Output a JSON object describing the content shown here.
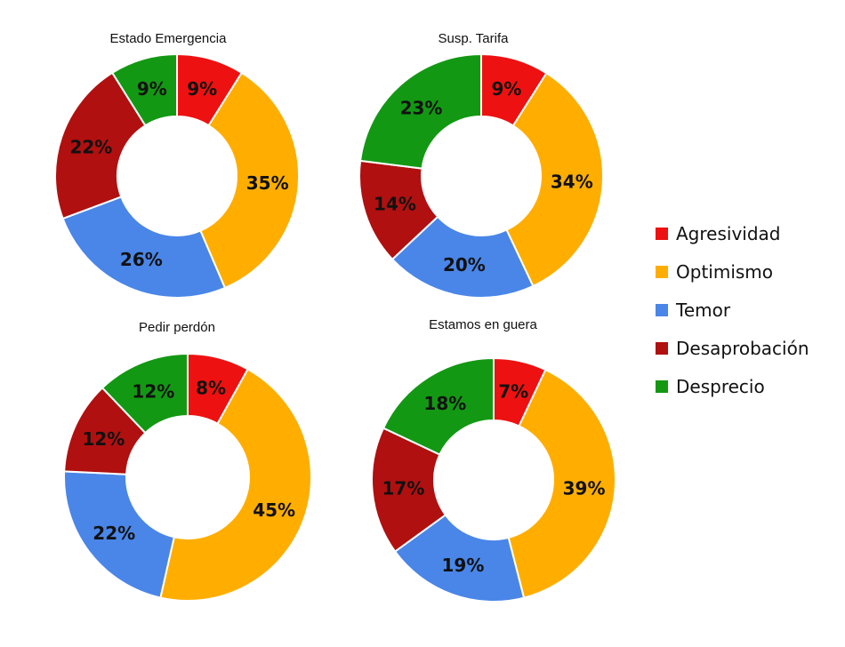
{
  "chart_data": [
    {
      "type": "pie",
      "title": "Estado Emergencia",
      "categories": [
        "Agresividad",
        "Optimismo",
        "Temor",
        "Desaprobación",
        "Desprecio"
      ],
      "values": [
        9,
        35,
        26,
        22,
        9
      ],
      "labels": [
        "9%",
        "35%",
        "26%",
        "22%",
        "9%"
      ]
    },
    {
      "type": "pie",
      "title": "Susp. Tarifa",
      "categories": [
        "Agresividad",
        "Optimismo",
        "Temor",
        "Desaprobación",
        "Desprecio"
      ],
      "values": [
        9,
        34,
        20,
        14,
        23
      ],
      "labels": [
        "9%",
        "34%",
        "20%",
        "14%",
        "23%"
      ]
    },
    {
      "type": "pie",
      "title": "Pedir perdón",
      "categories": [
        "Agresividad",
        "Optimismo",
        "Temor",
        "Desaprobación",
        "Desprecio"
      ],
      "values": [
        8,
        45,
        22,
        12,
        12
      ],
      "labels": [
        "8%",
        "45%",
        "22%",
        "12%",
        "12%"
      ]
    },
    {
      "type": "pie",
      "title": "Estamos en guera",
      "categories": [
        "Agresividad",
        "Optimismo",
        "Temor",
        "Desaprobación",
        "Desprecio"
      ],
      "values": [
        7,
        39,
        19,
        17,
        18
      ],
      "labels": [
        "7%",
        "39%",
        "19%",
        "17%",
        "18%"
      ]
    }
  ],
  "legend": {
    "placement": "right",
    "items": [
      {
        "label": "Agresividad",
        "color": "#ee1111"
      },
      {
        "label": "Optimismo",
        "color": "#ffae00"
      },
      {
        "label": "Temor",
        "color": "#4a86e8"
      },
      {
        "label": "Desaprobación",
        "color": "#b01010"
      },
      {
        "label": "Desprecio",
        "color": "#139813"
      }
    ]
  }
}
